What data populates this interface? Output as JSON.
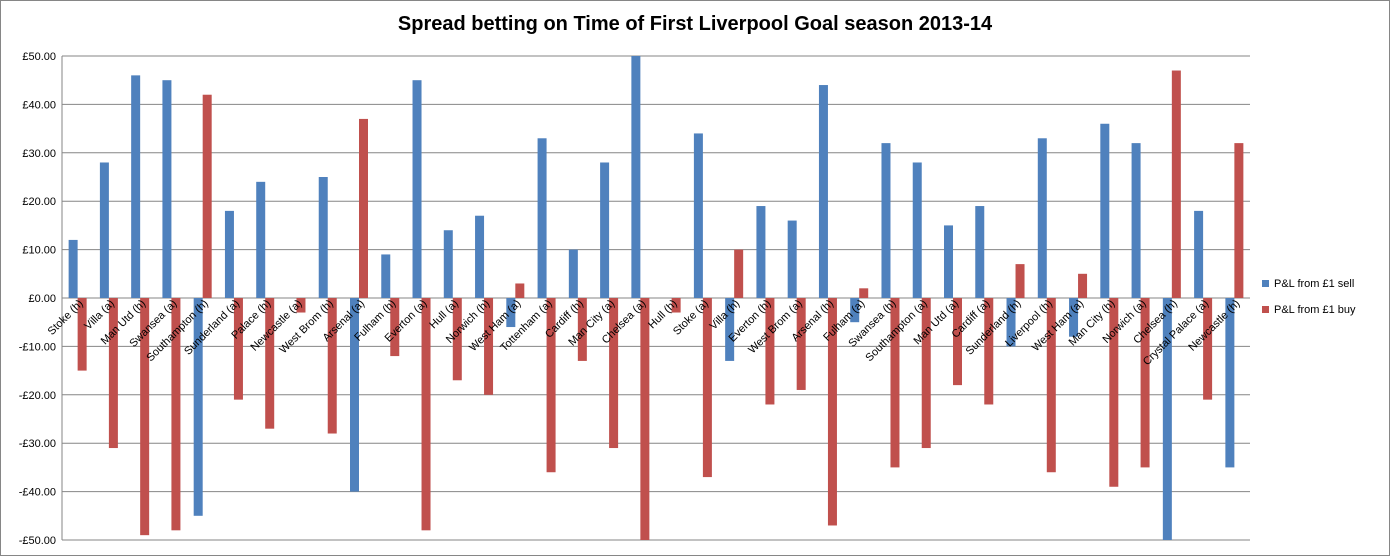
{
  "chart_data": {
    "type": "bar",
    "title": "Spread betting on Time of First Liverpool Goal season 2013-14",
    "categories": [
      "Stoke (h)",
      "Villa (a)",
      "Man Utd (h)",
      "Swansea (a)",
      "Southampton (h)",
      "Sunderland (a)",
      "Palace (h)",
      "Newcastle (a)",
      "West Brom (h)",
      "Arsenal (a)",
      "Fulham (h)",
      "Everton (a)",
      "Hull (a)",
      "Norwich (h)",
      "West Ham (a)",
      "Tottenham (a)",
      "Cardiff (h)",
      "Man City (a)",
      "Chelsea (a)",
      "Hull (h)",
      "Stoke (a)",
      "Villa (h)",
      "Everton (h)",
      "West Brom (a)",
      "Arsenal (h)",
      "Fulham (a)",
      "Swansea (h)",
      "Southampton (a)",
      "Man Utd (a)",
      "Cardiff (a)",
      "Sunderland (h)",
      "Liverpool (h)",
      "West Ham (a)",
      "Man City (h)",
      "Norwich (a)",
      "Chelsea (h)",
      "Crystal Palace (a)",
      "Newcastle (h)"
    ],
    "series": [
      {
        "name": "P&L from £1 sell",
        "color": "#4f81bd",
        "values": [
          12,
          28,
          46,
          45,
          -45,
          18,
          24,
          0,
          25,
          -40,
          9,
          45,
          14,
          17,
          -6,
          33,
          10,
          28,
          50,
          0,
          34,
          -13,
          19,
          16,
          44,
          -5,
          32,
          28,
          15,
          19,
          -10,
          33,
          -8,
          36,
          32,
          -50,
          18,
          -35
        ]
      },
      {
        "name": "P&L from £1 buy",
        "color": "#c0504d",
        "values": [
          -15,
          -31,
          -49,
          -48,
          42,
          -21,
          -27,
          -3,
          -28,
          37,
          -12,
          -48,
          -17,
          -20,
          3,
          -36,
          -13,
          -31,
          -50,
          -3,
          -37,
          10,
          -22,
          -19,
          -47,
          2,
          -35,
          -31,
          -18,
          -22,
          7,
          -36,
          5,
          -39,
          -35,
          47,
          -21,
          32
        ]
      }
    ],
    "ylim": [
      -50,
      50
    ],
    "yticks": [
      {
        "value": -50,
        "label": "-£50.00"
      },
      {
        "value": -40,
        "label": "-£40.00"
      },
      {
        "value": -30,
        "label": "-£30.00"
      },
      {
        "value": -20,
        "label": "-£20.00"
      },
      {
        "value": -10,
        "label": "-£10.00"
      },
      {
        "value": 0,
        "label": "£0.00"
      },
      {
        "value": 10,
        "label": "£10.00"
      },
      {
        "value": 20,
        "label": "£20.00"
      },
      {
        "value": 30,
        "label": "£30.00"
      },
      {
        "value": 40,
        "label": "£40.00"
      },
      {
        "value": 50,
        "label": "£50.00"
      }
    ],
    "grid": true,
    "legend": "right"
  }
}
